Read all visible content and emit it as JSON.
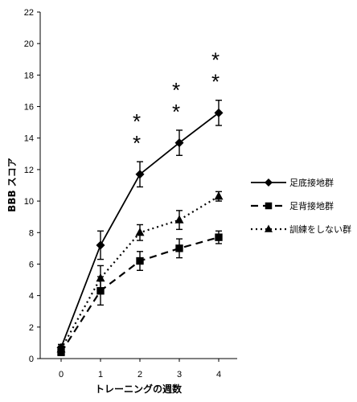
{
  "chart_data": {
    "type": "line",
    "xlabel": "トレーニングの週数",
    "ylabel": "BBB スコア",
    "x": [
      0,
      1,
      2,
      3,
      4
    ],
    "x_tick_labels": [
      "0",
      "1",
      "2",
      "3",
      "4"
    ],
    "ylim": [
      0,
      22
    ],
    "y_ticks": [
      0,
      2,
      4,
      6,
      8,
      10,
      12,
      14,
      16,
      18,
      20,
      22
    ],
    "grid": false,
    "legend_position": "right",
    "series": [
      {
        "name": "足底接地群",
        "marker": "diamond",
        "line_style": "solid",
        "values": [
          0.7,
          7.2,
          11.7,
          13.7,
          15.6
        ],
        "errors": [
          0.2,
          0.9,
          0.8,
          0.8,
          0.8
        ]
      },
      {
        "name": "足背接地群",
        "marker": "square",
        "line_style": "dashed",
        "values": [
          0.4,
          4.3,
          6.2,
          7.0,
          7.7
        ],
        "errors": [
          0.2,
          0.9,
          0.6,
          0.6,
          0.4
        ]
      },
      {
        "name": "訓練をしない群",
        "marker": "triangle",
        "line_style": "dotted",
        "values": [
          0.6,
          5.1,
          8.0,
          8.8,
          10.3
        ],
        "errors": [
          0.2,
          0.8,
          0.5,
          0.6,
          0.3
        ]
      }
    ],
    "annotations": [
      {
        "x": 2,
        "text": "＊＊"
      },
      {
        "x": 3,
        "text": "＊＊"
      },
      {
        "x": 4,
        "text": "＊＊"
      }
    ],
    "colors": {
      "series": "#000000",
      "axis": "#000000",
      "background": "#ffffff"
    }
  }
}
